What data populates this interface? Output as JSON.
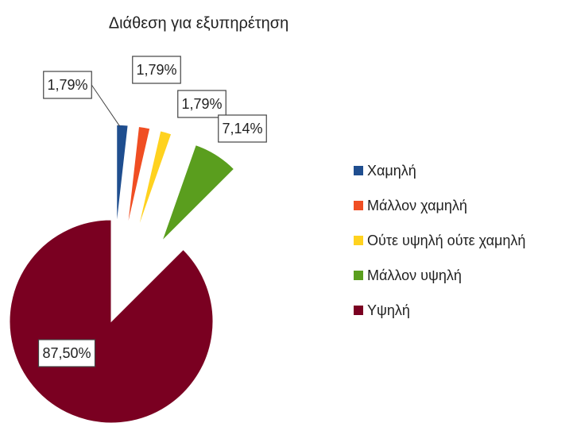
{
  "chart_data": {
    "type": "pie",
    "title": "Διάθεση για εξυπηρέτηση",
    "categories": [
      "Χαμηλή",
      "Μάλλον χαμηλή",
      "Ούτε υψηλή ούτε χαμηλή",
      "Μάλλον υψηλή",
      "Υψηλή"
    ],
    "values": [
      1.79,
      1.79,
      1.79,
      7.14,
      87.5
    ],
    "value_labels": [
      "1,79%",
      "1,79%",
      "1,79%",
      "7,14%",
      "87,50%"
    ],
    "colors": [
      "#1f4e8f",
      "#f04e23",
      "#ffd21f",
      "#5a9e1e",
      "#7a0021"
    ],
    "legend": "right"
  }
}
